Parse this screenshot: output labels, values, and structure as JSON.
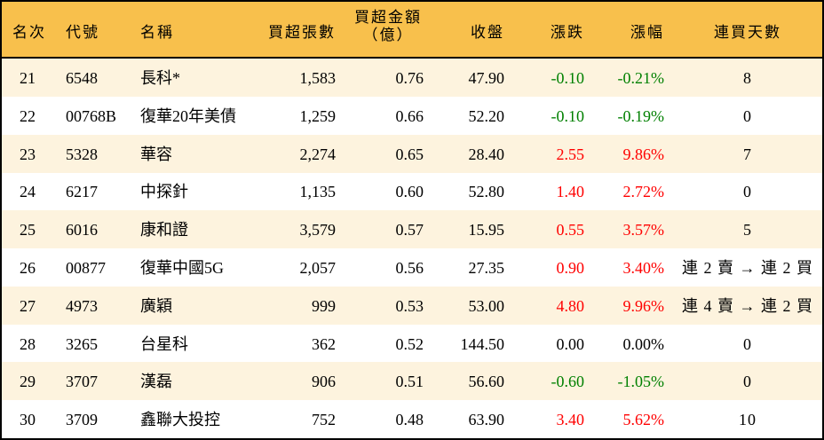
{
  "colors": {
    "header_bg": "#F8C04C",
    "odd_row_bg": "#FDF3DE",
    "even_row_bg": "#FFFFFF",
    "up": "#FF0000",
    "down": "#008000",
    "border": "#000000"
  },
  "header": {
    "rank": "名次",
    "code": "代號",
    "name": "名稱",
    "net_buy_lots": "買超張數",
    "net_buy_amount_line1": "買超金額",
    "net_buy_amount_line2": "（億）",
    "close": "收盤",
    "change": "漲跌",
    "change_pct": "漲幅",
    "consecutive_buy_days": "連買天數"
  },
  "rows": [
    {
      "rank": "21",
      "code": "6548",
      "name": "長科*",
      "lots": "1,583",
      "amount": "0.76",
      "close": "47.90",
      "change": "-0.10",
      "pct": "-0.21%",
      "days": "8",
      "dir": "down"
    },
    {
      "rank": "22",
      "code": "00768B",
      "name": "復華20年美債",
      "lots": "1,259",
      "amount": "0.66",
      "close": "52.20",
      "change": "-0.10",
      "pct": "-0.19%",
      "days": "0",
      "dir": "down"
    },
    {
      "rank": "23",
      "code": "5328",
      "name": "華容",
      "lots": "2,274",
      "amount": "0.65",
      "close": "28.40",
      "change": "2.55",
      "pct": "9.86%",
      "days": "7",
      "dir": "up"
    },
    {
      "rank": "24",
      "code": "6217",
      "name": "中探針",
      "lots": "1,135",
      "amount": "0.60",
      "close": "52.80",
      "change": "1.40",
      "pct": "2.72%",
      "days": "0",
      "dir": "up"
    },
    {
      "rank": "25",
      "code": "6016",
      "name": "康和證",
      "lots": "3,579",
      "amount": "0.57",
      "close": "15.95",
      "change": "0.55",
      "pct": "3.57%",
      "days": "5",
      "dir": "up"
    },
    {
      "rank": "26",
      "code": "00877",
      "name": "復華中國5G",
      "lots": "2,057",
      "amount": "0.56",
      "close": "27.35",
      "change": "0.90",
      "pct": "3.40%",
      "days": "連 2 賣 → 連 2 買",
      "dir": "up"
    },
    {
      "rank": "27",
      "code": "4973",
      "name": "廣穎",
      "lots": "999",
      "amount": "0.53",
      "close": "53.00",
      "change": "4.80",
      "pct": "9.96%",
      "days": "連 4 賣 → 連 2 買",
      "dir": "up"
    },
    {
      "rank": "28",
      "code": "3265",
      "name": "台星科",
      "lots": "362",
      "amount": "0.52",
      "close": "144.50",
      "change": "0.00",
      "pct": "0.00%",
      "days": "0",
      "dir": "flat"
    },
    {
      "rank": "29",
      "code": "3707",
      "name": "漢磊",
      "lots": "906",
      "amount": "0.51",
      "close": "56.60",
      "change": "-0.60",
      "pct": "-1.05%",
      "days": "0",
      "dir": "down"
    },
    {
      "rank": "30",
      "code": "3709",
      "name": "鑫聯大投控",
      "lots": "752",
      "amount": "0.48",
      "close": "63.90",
      "change": "3.40",
      "pct": "5.62%",
      "days": "10",
      "dir": "up"
    }
  ]
}
